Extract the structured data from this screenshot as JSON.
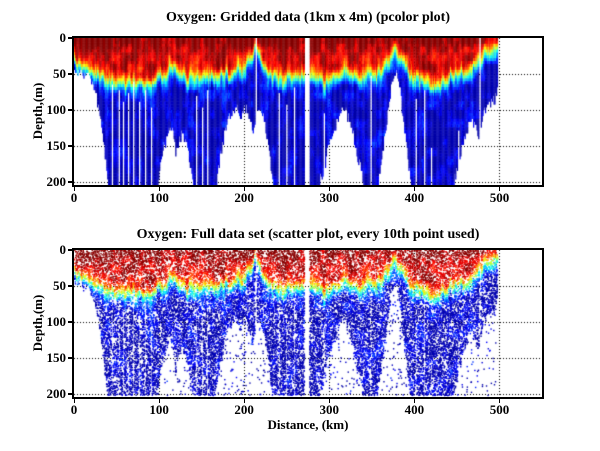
{
  "figure": {
    "background": "#ffffff",
    "axis_color": "#000000",
    "grid_style": "dotted"
  },
  "chart_data": [
    {
      "type": "heatmap",
      "subtype": "pcolor",
      "title": "Oxygen: Gridded data (1km x 4m) (pcolor plot)",
      "xlabel": "",
      "ylabel": "Depth,(m)",
      "xlim": [
        0,
        550
      ],
      "ylim": [
        0,
        204
      ],
      "y_axis_reversed": true,
      "xticks": [
        0,
        100,
        200,
        300,
        400,
        500
      ],
      "yticks": [
        0,
        50,
        100,
        150,
        200
      ],
      "grid": true,
      "colormap": "jet",
      "grid_resolution_km": 1,
      "grid_resolution_m": 4,
      "data_start_km": 0,
      "data_end_km": 498
    },
    {
      "type": "scatter",
      "title": "Oxygen: Full data set (scatter plot, every 10th point used)",
      "xlabel": "Distance, (km)",
      "ylabel": "Depth,(m)",
      "xlim": [
        0,
        550
      ],
      "ylim": [
        0,
        204
      ],
      "y_axis_reversed": true,
      "xticks": [
        0,
        100,
        200,
        300,
        400,
        500
      ],
      "yticks": [
        0,
        50,
        100,
        150,
        200
      ],
      "grid": true,
      "colormap": "jet",
      "dot_size_px": 1.4,
      "n_points": 36000,
      "sparse_below_extent_fraction": 0.055,
      "data_start_km": 0,
      "data_end_km": 498
    }
  ],
  "field_model": {
    "description_high_value_color": "red (high oxygen, surface layer)",
    "description_low_value_color": "blue (low oxygen, deep layer)",
    "oxycline_depth_profile_km_m": [
      [
        0,
        30
      ],
      [
        8,
        36
      ],
      [
        16,
        44
      ],
      [
        26,
        52
      ],
      [
        36,
        58
      ],
      [
        46,
        63
      ],
      [
        56,
        64
      ],
      [
        66,
        60
      ],
      [
        76,
        62
      ],
      [
        86,
        64
      ],
      [
        96,
        58
      ],
      [
        104,
        50
      ],
      [
        112,
        42
      ],
      [
        118,
        46
      ],
      [
        126,
        52
      ],
      [
        134,
        56
      ],
      [
        142,
        60
      ],
      [
        152,
        62
      ],
      [
        162,
        58
      ],
      [
        172,
        52
      ],
      [
        180,
        48
      ],
      [
        188,
        50
      ],
      [
        196,
        44
      ],
      [
        203,
        34
      ],
      [
        209,
        22
      ],
      [
        213,
        12
      ],
      [
        218,
        30
      ],
      [
        224,
        44
      ],
      [
        230,
        52
      ],
      [
        238,
        58
      ],
      [
        246,
        60
      ],
      [
        254,
        56
      ],
      [
        262,
        50
      ],
      [
        268,
        46
      ],
      [
        274,
        48
      ],
      [
        282,
        54
      ],
      [
        290,
        62
      ],
      [
        298,
        58
      ],
      [
        306,
        54
      ],
      [
        314,
        50
      ],
      [
        322,
        48
      ],
      [
        330,
        50
      ],
      [
        338,
        52
      ],
      [
        346,
        52
      ],
      [
        354,
        48
      ],
      [
        361,
        42
      ],
      [
        367,
        34
      ],
      [
        372,
        26
      ],
      [
        377,
        16
      ],
      [
        382,
        26
      ],
      [
        388,
        36
      ],
      [
        394,
        46
      ],
      [
        402,
        54
      ],
      [
        410,
        60
      ],
      [
        418,
        63
      ],
      [
        426,
        61
      ],
      [
        434,
        57
      ],
      [
        442,
        53
      ],
      [
        450,
        50
      ],
      [
        458,
        47
      ],
      [
        466,
        43
      ],
      [
        473,
        37
      ],
      [
        479,
        30
      ],
      [
        485,
        23
      ],
      [
        490,
        17
      ],
      [
        494,
        14
      ],
      [
        498,
        15
      ]
    ],
    "data_extent_profile_km_m": [
      [
        0,
        48
      ],
      [
        10,
        50
      ],
      [
        18,
        56
      ],
      [
        24,
        70
      ],
      [
        30,
        110
      ],
      [
        36,
        165
      ],
      [
        40,
        204
      ],
      [
        98,
        204
      ],
      [
        103,
        160
      ],
      [
        108,
        138
      ],
      [
        113,
        128
      ],
      [
        117,
        132
      ],
      [
        120,
        170
      ],
      [
        123,
        142
      ],
      [
        127,
        133
      ],
      [
        131,
        146
      ],
      [
        136,
        172
      ],
      [
        141,
        204
      ],
      [
        166,
        204
      ],
      [
        172,
        160
      ],
      [
        178,
        122
      ],
      [
        184,
        102
      ],
      [
        190,
        96
      ],
      [
        196,
        106
      ],
      [
        201,
        98
      ],
      [
        206,
        110
      ],
      [
        210,
        130
      ],
      [
        217,
        94
      ],
      [
        222,
        110
      ],
      [
        228,
        148
      ],
      [
        234,
        204
      ],
      [
        270,
        204
      ],
      [
        284,
        204
      ],
      [
        292,
        190
      ],
      [
        298,
        155
      ],
      [
        305,
        126
      ],
      [
        311,
        106
      ],
      [
        317,
        100
      ],
      [
        323,
        112
      ],
      [
        329,
        142
      ],
      [
        335,
        175
      ],
      [
        341,
        204
      ],
      [
        357,
        204
      ],
      [
        363,
        150
      ],
      [
        368,
        105
      ],
      [
        372,
        70
      ],
      [
        375,
        50
      ],
      [
        378,
        44
      ],
      [
        381,
        58
      ],
      [
        385,
        95
      ],
      [
        389,
        135
      ],
      [
        393,
        175
      ],
      [
        397,
        204
      ],
      [
        445,
        204
      ],
      [
        451,
        172
      ],
      [
        457,
        146
      ],
      [
        462,
        128
      ],
      [
        467,
        116
      ],
      [
        471,
        124
      ],
      [
        475,
        138
      ],
      [
        479,
        118
      ],
      [
        483,
        98
      ],
      [
        487,
        90
      ],
      [
        491,
        88
      ],
      [
        494,
        90
      ],
      [
        496,
        75
      ],
      [
        498,
        60
      ]
    ],
    "no_data_columns": [
      {
        "km": 214,
        "width_km": 2,
        "from_depth_m": 0
      },
      {
        "km": 274,
        "width_km": 6,
        "from_depth_m": 0
      },
      {
        "km": 349,
        "width_km": 1.5,
        "from_depth_m": 52
      },
      {
        "km": 477,
        "width_km": 1.5,
        "from_depth_m": 0
      }
    ],
    "bottom_gap_columns_km_fromdepth": [
      [
        45,
        62
      ],
      [
        53,
        72
      ],
      [
        58,
        86
      ],
      [
        64,
        76
      ],
      [
        70,
        60
      ],
      [
        77,
        88
      ],
      [
        84,
        70
      ],
      [
        91,
        96
      ],
      [
        121,
        150
      ],
      [
        144,
        80
      ],
      [
        151,
        96
      ],
      [
        157,
        70
      ],
      [
        241,
        76
      ],
      [
        250,
        92
      ],
      [
        259,
        66
      ],
      [
        294,
        104
      ],
      [
        308,
        170
      ],
      [
        318,
        160
      ],
      [
        326,
        150
      ],
      [
        402,
        82
      ],
      [
        412,
        72
      ],
      [
        420,
        150
      ],
      [
        452,
        126
      ],
      [
        461,
        130
      ]
    ]
  }
}
